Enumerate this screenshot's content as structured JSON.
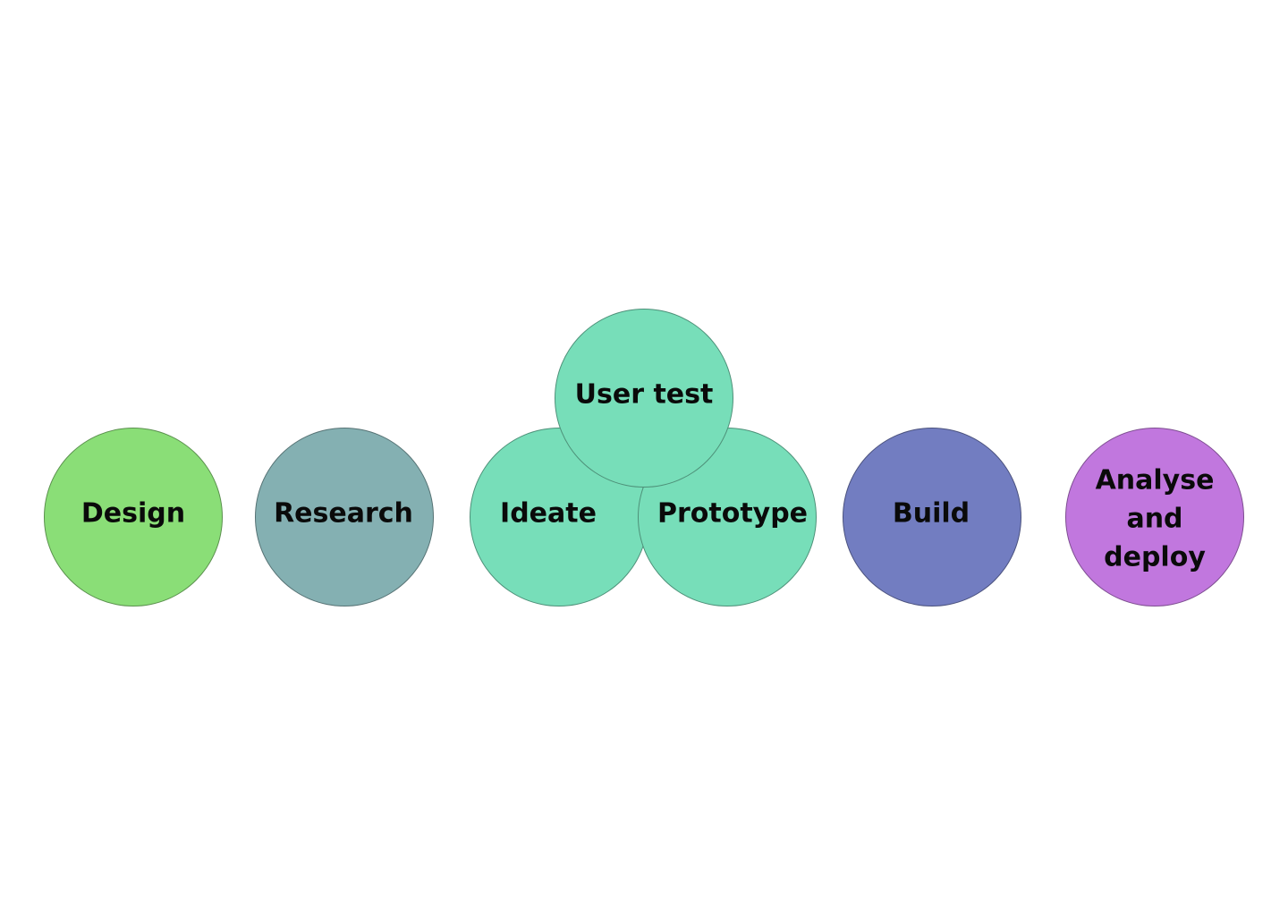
{
  "diagram": {
    "stages": [
      {
        "id": "design",
        "label": "Design",
        "color": "#8ade77"
      },
      {
        "id": "research",
        "label": "Research",
        "color": "#84b0b2"
      },
      {
        "id": "ideate",
        "label": "Ideate",
        "color": "#77deb9"
      },
      {
        "id": "prototype",
        "label": "Prototype",
        "color": "#77deb9"
      },
      {
        "id": "user-test",
        "label": "User test",
        "color": "#77deb9"
      },
      {
        "id": "build",
        "label": "Build",
        "color": "#727dc1"
      },
      {
        "id": "analyse-deploy",
        "label": "Analyse\nand\ndeploy",
        "color": "#c177de"
      }
    ]
  }
}
